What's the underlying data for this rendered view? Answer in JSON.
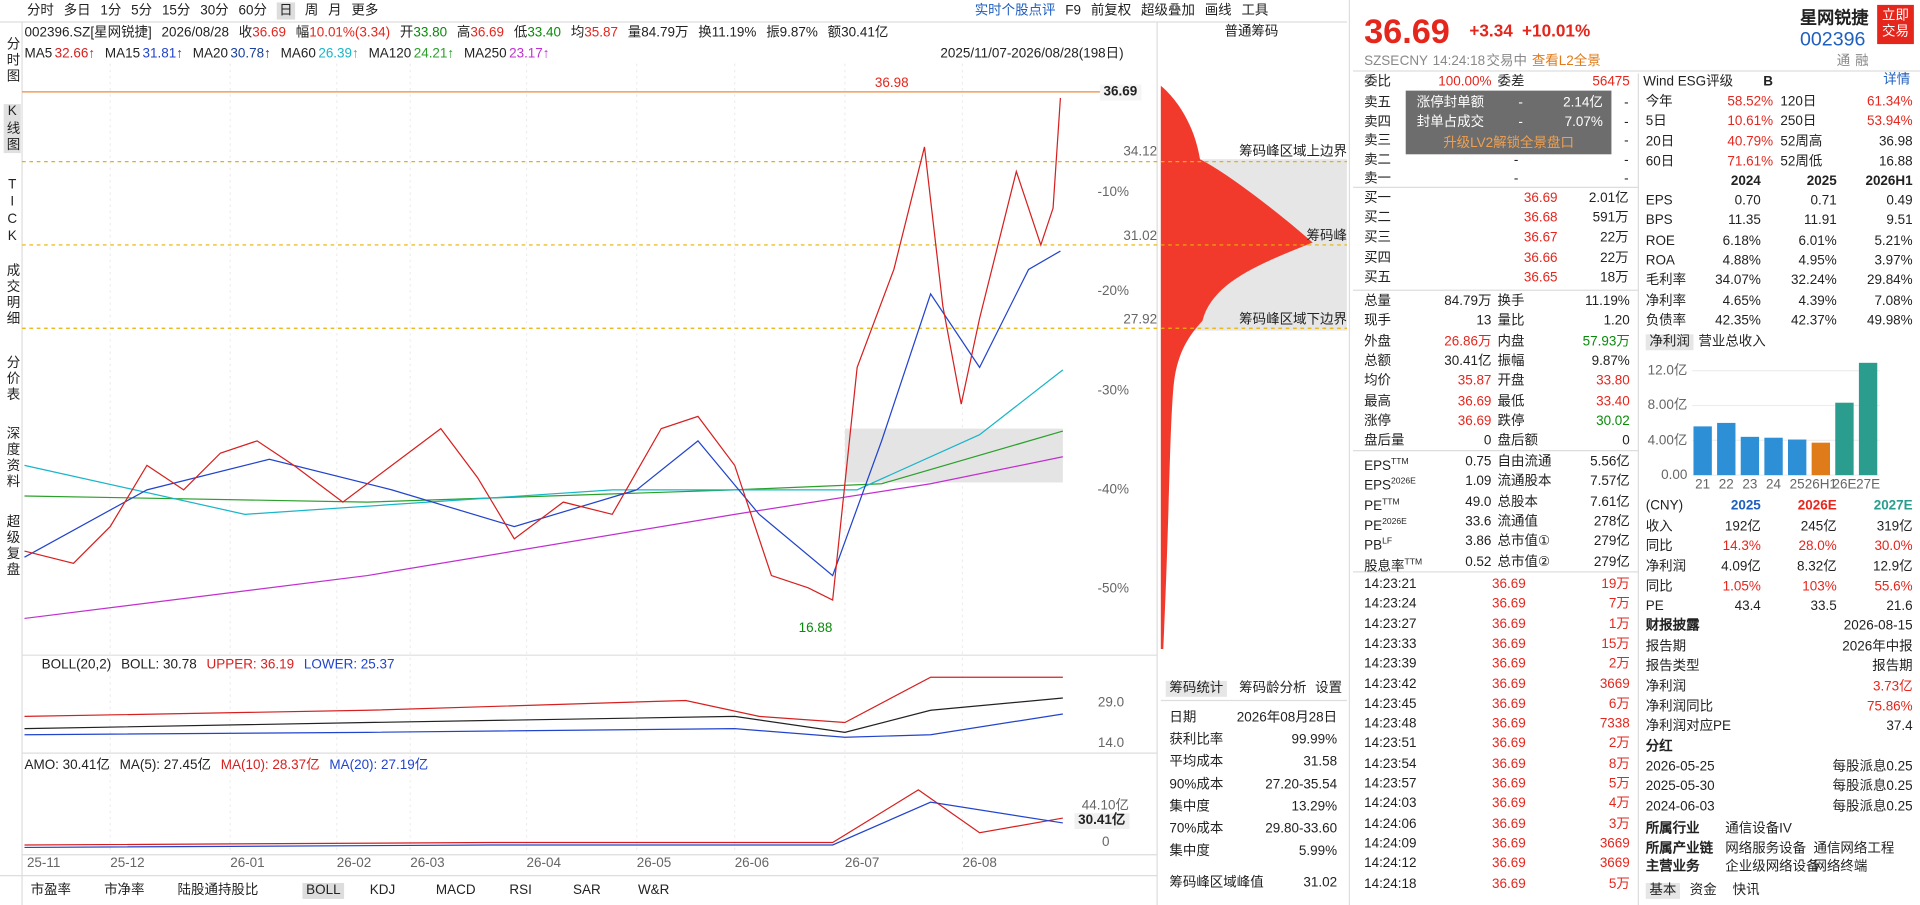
{
  "toolbar": {
    "periods": [
      "分时",
      "多日",
      "1分",
      "5分",
      "15分",
      "30分",
      "60分",
      "日",
      "周",
      "月",
      "更多"
    ],
    "active": "日",
    "tools": [
      "实时个股点评",
      "F9",
      "前复权",
      "超级叠加",
      "画线",
      "工具"
    ]
  },
  "side_tabs": {
    "items": [
      "分时图",
      "K线图",
      "TICK",
      "成交明细",
      "分价表",
      "深度资料",
      "超级复盘"
    ],
    "active": "K线图"
  },
  "quote": {
    "code": "002396.SZ[星网锐捷]",
    "date": "2026/08/28",
    "items": [
      [
        "收",
        "36.69"
      ],
      [
        "幅",
        "10.01%(3.34)"
      ],
      [
        "开",
        "33.80"
      ],
      [
        "高",
        "36.69"
      ],
      [
        "低",
        "33.40"
      ],
      [
        "均",
        "35.87"
      ],
      [
        "量",
        "84.79万"
      ],
      [
        "换",
        "11.19%"
      ],
      [
        "振",
        "9.87%"
      ],
      [
        "额",
        "30.41亿"
      ]
    ]
  },
  "ma": [
    {
      "name": "MA5",
      "value": "32.66↑",
      "color": "#d62020"
    },
    {
      "name": "MA15",
      "value": "31.81↑",
      "color": "#2244cc"
    },
    {
      "name": "MA20",
      "value": "30.78↑",
      "color": "#1a3f9a"
    },
    {
      "name": "MA60",
      "value": "26.39↑",
      "color": "#19b5c8"
    },
    {
      "name": "MA120",
      "value": "24.21↑",
      "color": "#2ca02c"
    },
    {
      "name": "MA250",
      "value": "23.17↑",
      "color": "#c030d0"
    }
  ],
  "period_range": "2025/11/07-2026/08/28(198日)",
  "price_axis": {
    "current": "36.69",
    "labels": [
      "34.12",
      "31.02",
      "27.92"
    ],
    "pct": [
      "-10%",
      "-20%",
      "-30%",
      "-40%",
      "-50%"
    ],
    "high": "36.98",
    "low": "16.88"
  },
  "chips": {
    "title": "普通筹码",
    "upper": "筹码峰区域上边界",
    "peak": "筹码峰",
    "lower": "筹码峰区域下边界"
  },
  "boll": {
    "items": [
      {
        "text": "BOLL(20,2)",
        "color": "#222"
      },
      {
        "text": "BOLL: 30.78",
        "color": "#222"
      },
      {
        "text": "UPPER: 36.19",
        "color": "#d62020"
      },
      {
        "text": "LOWER: 25.37",
        "color": "#2244cc"
      }
    ],
    "axis": [
      "29.0",
      "14.0"
    ]
  },
  "amo": {
    "items": [
      {
        "text": "AMO: 30.41亿",
        "color": "#222"
      },
      {
        "text": "MA(5): 27.45亿",
        "color": "#222"
      },
      {
        "text": "MA(10): 28.37亿",
        "color": "#d62020"
      },
      {
        "text": "MA(20): 27.19亿",
        "color": "#2244cc"
      }
    ],
    "axis": [
      "44.10亿",
      "30.41亿",
      "0"
    ]
  },
  "x_axis": [
    "25-11",
    "25-12",
    "26-01",
    "26-02",
    "26-03",
    "26-04",
    "26-05",
    "26-06",
    "26-07",
    "26-08"
  ],
  "bottom_tabs": {
    "items": [
      "市盈率",
      "市净率",
      "陆股通持股比",
      "BOLL",
      "KDJ",
      "MACD",
      "RSI",
      "SAR",
      "W&R"
    ],
    "active": "BOLL"
  },
  "chip_stats": {
    "tabs": [
      "筹码统计",
      "筹码龄分析",
      "设置"
    ],
    "rows": [
      [
        "日期",
        "2026年08月28日"
      ],
      [
        "获利比率",
        "99.99%"
      ],
      [
        "平均成本",
        "31.58"
      ],
      [
        "90%成本",
        "27.20-35.54"
      ],
      [
        "集中度",
        "13.29%"
      ],
      [
        "70%成本",
        "29.80-33.60"
      ],
      [
        "集中度",
        "5.99%"
      ],
      [
        "筹码峰区域峰值",
        "31.02"
      ]
    ]
  },
  "quote_panel": {
    "price": "36.69",
    "change": "+3.34",
    "change_pct": "+10.01%",
    "name": "星网锐捷",
    "code": "002396",
    "trade_button": "立即交易",
    "market": "SZSE",
    "currency": "CNY",
    "time": "14:24:18",
    "status": "交易中",
    "l2_link": "查看L2全景",
    "icons": [
      "通",
      "融"
    ],
    "order_ratio": {
      "label": "委比",
      "value": "100.00%",
      "diff_label": "委差",
      "diff": "56475"
    },
    "asks": [
      [
        "卖五",
        "-",
        "-"
      ],
      [
        "卖四",
        "-",
        "-"
      ],
      [
        "卖三",
        "-",
        "-"
      ],
      [
        "卖二",
        "-",
        "-"
      ],
      [
        "卖一",
        "-",
        "-"
      ]
    ],
    "limit_box": {
      "rows": [
        [
          "涨停封单额",
          "-",
          "2.14亿"
        ],
        [
          "封单占成交",
          "-",
          "7.07%"
        ]
      ],
      "upgrade": "升级LV2解锁全景盘口"
    },
    "bids": [
      [
        "买一",
        "36.69",
        "2.01亿"
      ],
      [
        "买二",
        "36.68",
        "591万"
      ],
      [
        "买三",
        "36.67",
        "22万"
      ],
      [
        "买四",
        "36.66",
        "22万"
      ],
      [
        "买五",
        "36.65",
        "18万"
      ]
    ],
    "stats": [
      [
        "总量",
        "84.79万",
        "换手",
        "11.19%"
      ],
      [
        "现手",
        "13",
        "量比",
        "1.20"
      ],
      [
        "外盘",
        "26.86万",
        "内盘",
        "57.93万"
      ],
      [
        "总额",
        "30.41亿",
        "振幅",
        "9.87%"
      ],
      [
        "均价",
        "35.87",
        "开盘",
        "33.80"
      ],
      [
        "最高",
        "36.69",
        "最低",
        "33.40"
      ],
      [
        "涨停",
        "36.69",
        "跌停",
        "30.02"
      ],
      [
        "盘后量",
        "0",
        "盘后额",
        "0"
      ]
    ],
    "fundamentals": [
      [
        "EPS",
        "TTM",
        "0.75",
        "自由流通",
        "5.56亿"
      ],
      [
        "EPS",
        "2026E",
        "1.09",
        "流通股本",
        "7.57亿"
      ],
      [
        "PE",
        "TTM",
        "49.0",
        "总股本",
        "7.61亿"
      ],
      [
        "PE",
        "2026E",
        "33.6",
        "流通值",
        "278亿"
      ],
      [
        "PB",
        "LF",
        "3.86",
        "总市值①",
        "279亿"
      ],
      [
        "股息率",
        "TTM",
        "0.52",
        "总市值②",
        "279亿"
      ]
    ],
    "ticks": [
      [
        "14:23:21",
        "36.69",
        "19万"
      ],
      [
        "14:23:24",
        "36.69",
        "7万"
      ],
      [
        "14:23:27",
        "36.69",
        "1万"
      ],
      [
        "14:23:33",
        "36.69",
        "15万"
      ],
      [
        "14:23:39",
        "36.69",
        "2万"
      ],
      [
        "14:23:42",
        "36.69",
        "3669"
      ],
      [
        "14:23:45",
        "36.69",
        "6万"
      ],
      [
        "14:23:48",
        "36.69",
        "7338"
      ],
      [
        "14:23:51",
        "36.69",
        "2万"
      ],
      [
        "14:23:54",
        "36.69",
        "8万"
      ],
      [
        "14:23:57",
        "36.69",
        "5万"
      ],
      [
        "14:24:03",
        "36.69",
        "4万"
      ],
      [
        "14:24:06",
        "36.69",
        "3万"
      ],
      [
        "14:24:09",
        "36.69",
        "3669"
      ],
      [
        "14:24:12",
        "36.69",
        "3669"
      ],
      [
        "14:24:18",
        "36.69",
        "5万"
      ]
    ]
  },
  "profile": {
    "esg": {
      "label": "Wind ESG评级",
      "rating": "B",
      "link": "详情"
    },
    "returns": [
      [
        "今年",
        "58.52%",
        "120日",
        "61.34%"
      ],
      [
        "5日",
        "10.61%",
        "250日",
        "53.94%"
      ],
      [
        "20日",
        "40.79%",
        "52周高",
        "36.98"
      ],
      [
        "60日",
        "71.61%",
        "52周低",
        "16.88"
      ]
    ],
    "fin": {
      "headers": [
        "2024",
        "2025",
        "2026H1"
      ],
      "rows": [
        [
          "EPS",
          "0.70",
          "0.71",
          "0.49"
        ],
        [
          "BPS",
          "11.35",
          "11.91",
          "9.51"
        ],
        [
          "ROE",
          "6.18%",
          "6.01%",
          "5.21%"
        ],
        [
          "ROA",
          "4.88%",
          "4.95%",
          "3.97%"
        ],
        [
          "毛利率",
          "34.07%",
          "32.24%",
          "29.84%"
        ],
        [
          "净利率",
          "4.65%",
          "4.39%",
          "7.08%"
        ],
        [
          "负债率",
          "42.35%",
          "42.37%",
          "49.98%"
        ]
      ]
    },
    "profit_tabs": [
      "净利润",
      "营业总收入"
    ],
    "forecast": {
      "headers": [
        "(CNY)",
        "2025",
        "2026E",
        "2027E"
      ],
      "rows": [
        [
          "收入",
          "192亿",
          "245亿",
          "319亿"
        ],
        [
          "同比",
          "14.3%",
          "28.0%",
          "30.0%"
        ],
        [
          "净利润",
          "4.09亿",
          "8.32亿",
          "12.9亿"
        ],
        [
          "同比",
          "1.05%",
          "103%",
          "55.6%"
        ],
        [
          "PE",
          "43.4",
          "33.5",
          "21.6"
        ]
      ]
    },
    "report": {
      "title": "财报披露",
      "date": "2026-08-15",
      "rows": [
        [
          "报告期",
          "2026年中报"
        ],
        [
          "报告类型",
          "报告期"
        ],
        [
          "净利润",
          "3.73亿"
        ],
        [
          "净利润同比",
          "75.86%"
        ],
        [
          "净利润对应PE",
          "37.4"
        ]
      ]
    },
    "dividend": {
      "title": "分红",
      "rows": [
        [
          "2026-05-25",
          "每股派息0.25"
        ],
        [
          "2025-05-30",
          "每股派息0.25"
        ],
        [
          "2024-06-03",
          "每股派息0.25"
        ]
      ]
    },
    "industry": [
      [
        "所属行业",
        "通信设备IV"
      ],
      [
        "所属产业链",
        "网络服务设备",
        "通信网络工程"
      ],
      [
        "主营业务",
        "企业级网络设备",
        "网络终端"
      ]
    ],
    "tabs": [
      "基本",
      "资金",
      "快讯"
    ]
  },
  "chart_data": {
    "type": "bar",
    "categories": [
      "21",
      "22",
      "23",
      "24",
      "25",
      "26H1",
      "26E",
      "27E"
    ],
    "values": [
      5.6,
      6.0,
      4.4,
      4.3,
      4.09,
      3.73,
      8.32,
      12.9
    ],
    "colors": [
      "#2d8fd5",
      "#2d8fd5",
      "#2d8fd5",
      "#2d8fd5",
      "#2d8fd5",
      "#e07b1a",
      "#2a9d8f",
      "#2a9d8f"
    ],
    "ylim": [
      0,
      13.5
    ],
    "yticks": [
      {
        "value": 0,
        "label": "0.00"
      },
      {
        "value": 4,
        "label": "4.00亿"
      },
      {
        "value": 8,
        "label": "8.00亿"
      },
      {
        "value": 12,
        "label": "12.0亿"
      }
    ],
    "grid": true
  }
}
